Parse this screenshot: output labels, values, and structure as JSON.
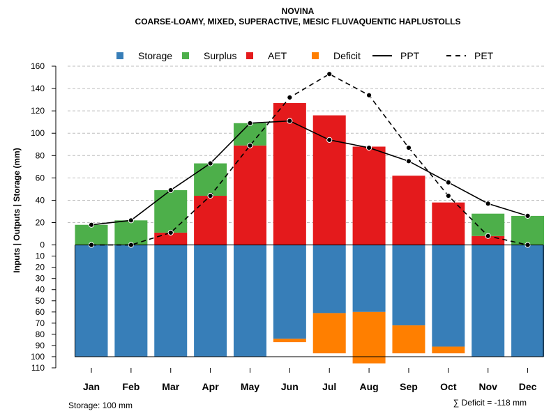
{
  "chart_data": {
    "type": "bar",
    "title": "NOVINA",
    "subtitle": "COARSE-LOAMY, MIXED, SUPERACTIVE, MESIC FLUVAQUENTIC HAPLUSTOLLS",
    "ylabel": "Inputs | Outputs | Storage    (mm)",
    "ylim": [
      -110,
      160
    ],
    "upper_ticks": [
      0,
      20,
      40,
      60,
      80,
      100,
      120,
      140,
      160
    ],
    "lower_ticks": [
      10,
      20,
      30,
      40,
      50,
      60,
      70,
      80,
      90,
      100,
      110
    ],
    "grid": true,
    "legend_position": "top",
    "categories": [
      "Jan",
      "Feb",
      "Mar",
      "Apr",
      "May",
      "Jun",
      "Jul",
      "Aug",
      "Sep",
      "Oct",
      "Nov",
      "Dec"
    ],
    "legend": [
      {
        "label": "Storage",
        "kind": "box",
        "color": "#377EB8"
      },
      {
        "label": "Surplus",
        "kind": "box",
        "color": "#4DAF4A"
      },
      {
        "label": "AET",
        "kind": "box",
        "color": "#E41A1C"
      },
      {
        "label": "Deficit",
        "kind": "box",
        "color": "#FF7F00"
      },
      {
        "label": "PPT",
        "kind": "solid"
      },
      {
        "label": "PET",
        "kind": "dashed"
      }
    ],
    "colors": {
      "storage": "#377EB8",
      "surplus": "#4DAF4A",
      "aet": "#E41A1C",
      "deficit": "#FF7F00",
      "grid": "#BEBEBE"
    },
    "series": [
      {
        "name": "AET",
        "values": [
          0,
          0,
          11,
          44,
          89,
          127,
          116,
          88,
          62,
          38,
          8,
          0
        ]
      },
      {
        "name": "Surplus",
        "values": [
          18,
          22,
          38,
          29,
          20,
          0,
          0,
          0,
          0,
          0,
          20,
          26
        ]
      },
      {
        "name": "Storage",
        "values": [
          100,
          100,
          100,
          100,
          100,
          84,
          61,
          60,
          72,
          91,
          100,
          100
        ]
      },
      {
        "name": "Deficit",
        "values": [
          0,
          0,
          0,
          0,
          0,
          3,
          36,
          46,
          25,
          6,
          0,
          0
        ]
      },
      {
        "name": "PPT",
        "values": [
          18,
          22,
          49,
          73,
          109,
          111,
          94,
          87,
          75,
          56,
          37,
          26
        ]
      },
      {
        "name": "PET",
        "values": [
          0,
          0,
          11,
          44,
          89,
          132,
          153,
          134,
          87,
          44,
          8,
          0
        ]
      }
    ],
    "storage_capacity": 100,
    "storage_note": "Storage: 100 mm",
    "deficit_note": "∑ Deficit = -118 mm"
  }
}
